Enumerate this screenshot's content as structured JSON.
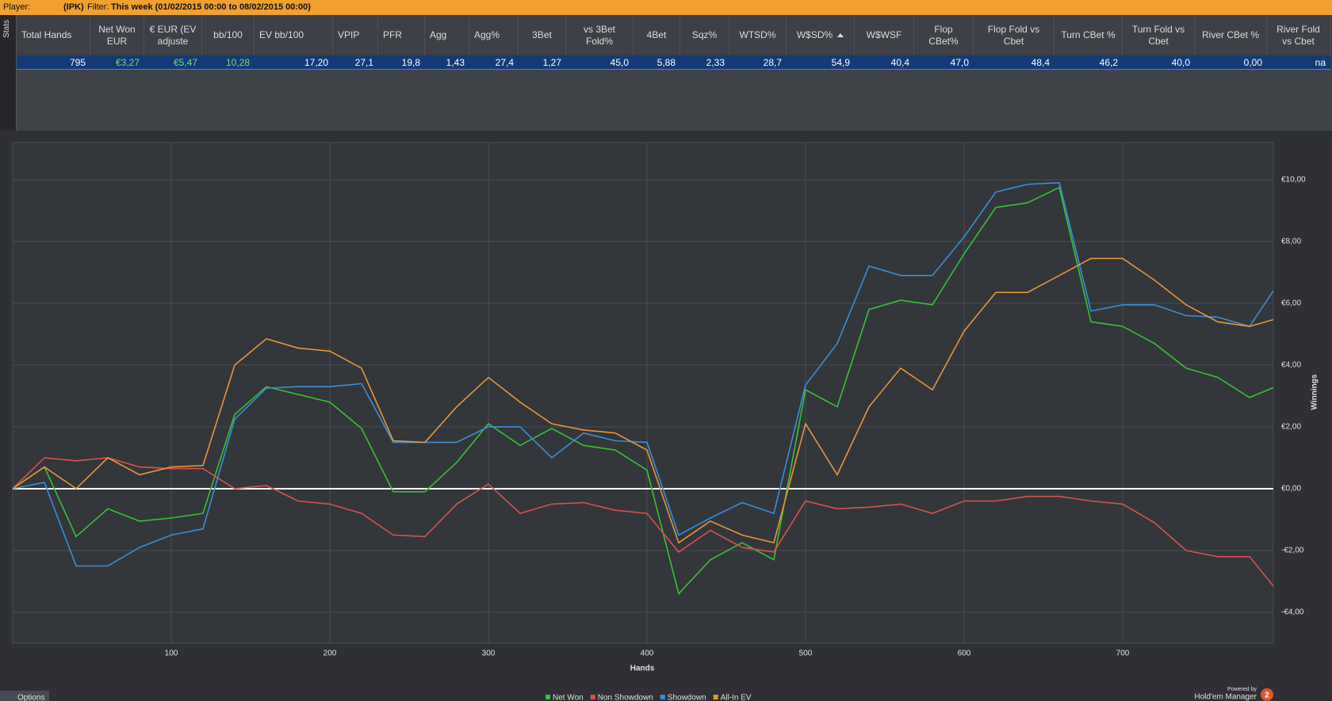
{
  "header": {
    "player_label": "Player:",
    "player": "(IPK)",
    "filter_label": "Filter:",
    "filter": "This week (01/02/2015 00:00 to 08/02/2015 00:00)"
  },
  "side_tab": "Stats",
  "stats": {
    "headers": [
      "Total Hands",
      "Net Won EUR",
      "€ EUR (EV adjuste",
      "bb/100",
      "EV bb/100",
      "VPIP",
      "PFR",
      "Agg",
      "Agg%",
      "3Bet",
      "vs 3Bet Fold%",
      "4Bet",
      "Sqz%",
      "WTSD%",
      "W$SD%",
      "W$WSF",
      "Flop CBet%",
      "Flop Fold vs Cbet",
      "Turn CBet %",
      "Turn Fold vs Cbet",
      "River CBet %",
      "River Fold vs Cbet"
    ],
    "row": [
      "795",
      "€3,27",
      "€5,47",
      "10,28",
      "17,20",
      "27,1",
      "19,8",
      "1,43",
      "27,4",
      "1,27",
      "45,0",
      "5,88",
      "2,33",
      "28,7",
      "54,9",
      "40,4",
      "47,0",
      "48,4",
      "46,2",
      "40,0",
      "0,00",
      "na"
    ]
  },
  "chart_data": {
    "type": "line",
    "x_label": "Hands",
    "y_label": "Winnings",
    "x": [
      0,
      20,
      40,
      60,
      80,
      100,
      120,
      140,
      160,
      180,
      200,
      220,
      240,
      260,
      280,
      300,
      320,
      340,
      360,
      380,
      400,
      420,
      440,
      460,
      480,
      500,
      520,
      540,
      560,
      580,
      600,
      620,
      640,
      660,
      680,
      700,
      720,
      740,
      760,
      780,
      795
    ],
    "series": [
      {
        "name": "Net Won",
        "color": "#35c435",
        "values": [
          0,
          0.7,
          -1.55,
          -0.65,
          -1.05,
          -0.95,
          -0.8,
          2.4,
          3.3,
          3.05,
          2.8,
          1.95,
          -0.1,
          -0.1,
          0.85,
          2.1,
          1.4,
          1.95,
          1.4,
          1.25,
          0.6,
          -3.4,
          -2.3,
          -1.75,
          -2.3,
          3.2,
          2.65,
          5.8,
          6.1,
          5.95,
          7.6,
          9.1,
          9.25,
          9.75,
          5.4,
          5.25,
          4.7,
          3.9,
          3.6,
          2.95,
          3.27
        ]
      },
      {
        "name": "Non Showdown",
        "color": "#d9534f",
        "values": [
          0,
          1.0,
          0.9,
          1.0,
          0.7,
          0.65,
          0.65,
          0,
          0.1,
          -0.4,
          -0.5,
          -0.8,
          -1.5,
          -1.55,
          -0.5,
          0.15,
          -0.8,
          -0.5,
          -0.45,
          -0.7,
          -0.8,
          -2.05,
          -1.35,
          -1.9,
          -2.05,
          -0.4,
          -0.65,
          -0.6,
          -0.5,
          -0.8,
          -0.4,
          -0.4,
          -0.25,
          -0.25,
          -0.4,
          -0.5,
          -1.1,
          -2.0,
          -2.2,
          -2.2,
          -3.15
        ]
      },
      {
        "name": "Showdown",
        "color": "#3a8fd9",
        "values": [
          0,
          0.2,
          -2.5,
          -2.5,
          -1.9,
          -1.5,
          -1.3,
          2.25,
          3.25,
          3.3,
          3.3,
          3.4,
          1.5,
          1.5,
          1.5,
          2.0,
          2.0,
          1.0,
          1.8,
          1.55,
          1.5,
          -1.5,
          -0.95,
          -0.45,
          -0.8,
          3.35,
          4.7,
          7.2,
          6.9,
          6.9,
          8.15,
          9.6,
          9.85,
          9.9,
          5.75,
          5.95,
          5.95,
          5.6,
          5.55,
          5.25,
          6.4
        ]
      },
      {
        "name": "All-In EV",
        "color": "#e8963a",
        "values": [
          0,
          0.7,
          0,
          1.0,
          0.45,
          0.7,
          0.75,
          4.0,
          4.85,
          4.55,
          4.45,
          3.9,
          1.55,
          1.5,
          2.65,
          3.6,
          2.8,
          2.1,
          1.9,
          1.8,
          1.25,
          -1.75,
          -1.05,
          -1.5,
          -1.75,
          2.1,
          0.45,
          2.65,
          3.9,
          3.2,
          5.1,
          6.35,
          6.35,
          6.9,
          7.45,
          7.45,
          6.75,
          5.95,
          5.4,
          5.25,
          5.47
        ]
      }
    ],
    "xlim": [
      0,
      795
    ],
    "ylim": [
      -5,
      11.2
    ],
    "xticks": [
      100,
      200,
      300,
      400,
      500,
      600,
      700
    ],
    "yticks": [
      {
        "value": -4,
        "label": "-€4,00"
      },
      {
        "value": -2,
        "label": "-€2,00"
      },
      {
        "value": 0,
        "label": "€0,00"
      },
      {
        "value": 2,
        "label": "€2,00"
      },
      {
        "value": 4,
        "label": "€4,00"
      },
      {
        "value": 6,
        "label": "€6,00"
      },
      {
        "value": 8,
        "label": "€8,00"
      },
      {
        "value": 10,
        "label": "€10,00"
      }
    ],
    "grid": true,
    "legend": "bottom"
  },
  "footer": {
    "options": "Options",
    "powered_by": "Powered by",
    "brand": "Hold'em Manager",
    "version": "2"
  }
}
